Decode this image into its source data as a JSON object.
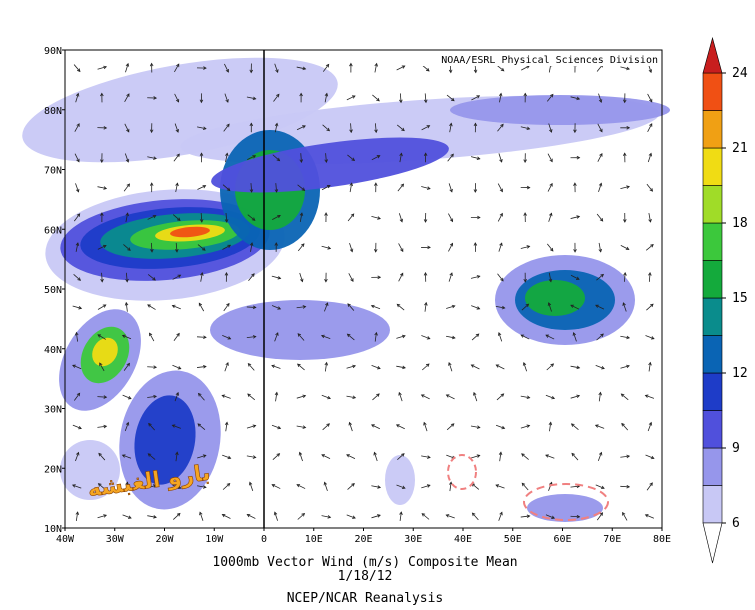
{
  "map": {
    "credit_top": "NOAA/ESRL Physical Sciences Division",
    "lat_labels": [
      "90N",
      "80N",
      "70N",
      "60N",
      "50N",
      "40N",
      "30N",
      "20N",
      "10N"
    ],
    "lon_labels": [
      "40W",
      "30W",
      "20W",
      "10W",
      "0",
      "10E",
      "20E",
      "30E",
      "40E",
      "50E",
      "60E",
      "70E",
      "80E"
    ],
    "watermark": "بارو الغبشه"
  },
  "colorbar": {
    "ticks": [
      6,
      9,
      12,
      15,
      18,
      21,
      24
    ],
    "colors": [
      "#c8c8f5",
      "#9696eb",
      "#5050dc",
      "#1e3cc8",
      "#0a64b4",
      "#0a8c8c",
      "#14aa3c",
      "#3cc83c",
      "#a0dc28",
      "#f0dc14",
      "#f0a014",
      "#f05014"
    ],
    "over_color": "#c81e1e",
    "under_color": "#ffffff"
  },
  "caption": {
    "line1": "1000mb Vector Wind (m/s) Composite Mean",
    "line2": "1/18/12",
    "source": "NCEP/NCAR Reanalysis"
  }
}
